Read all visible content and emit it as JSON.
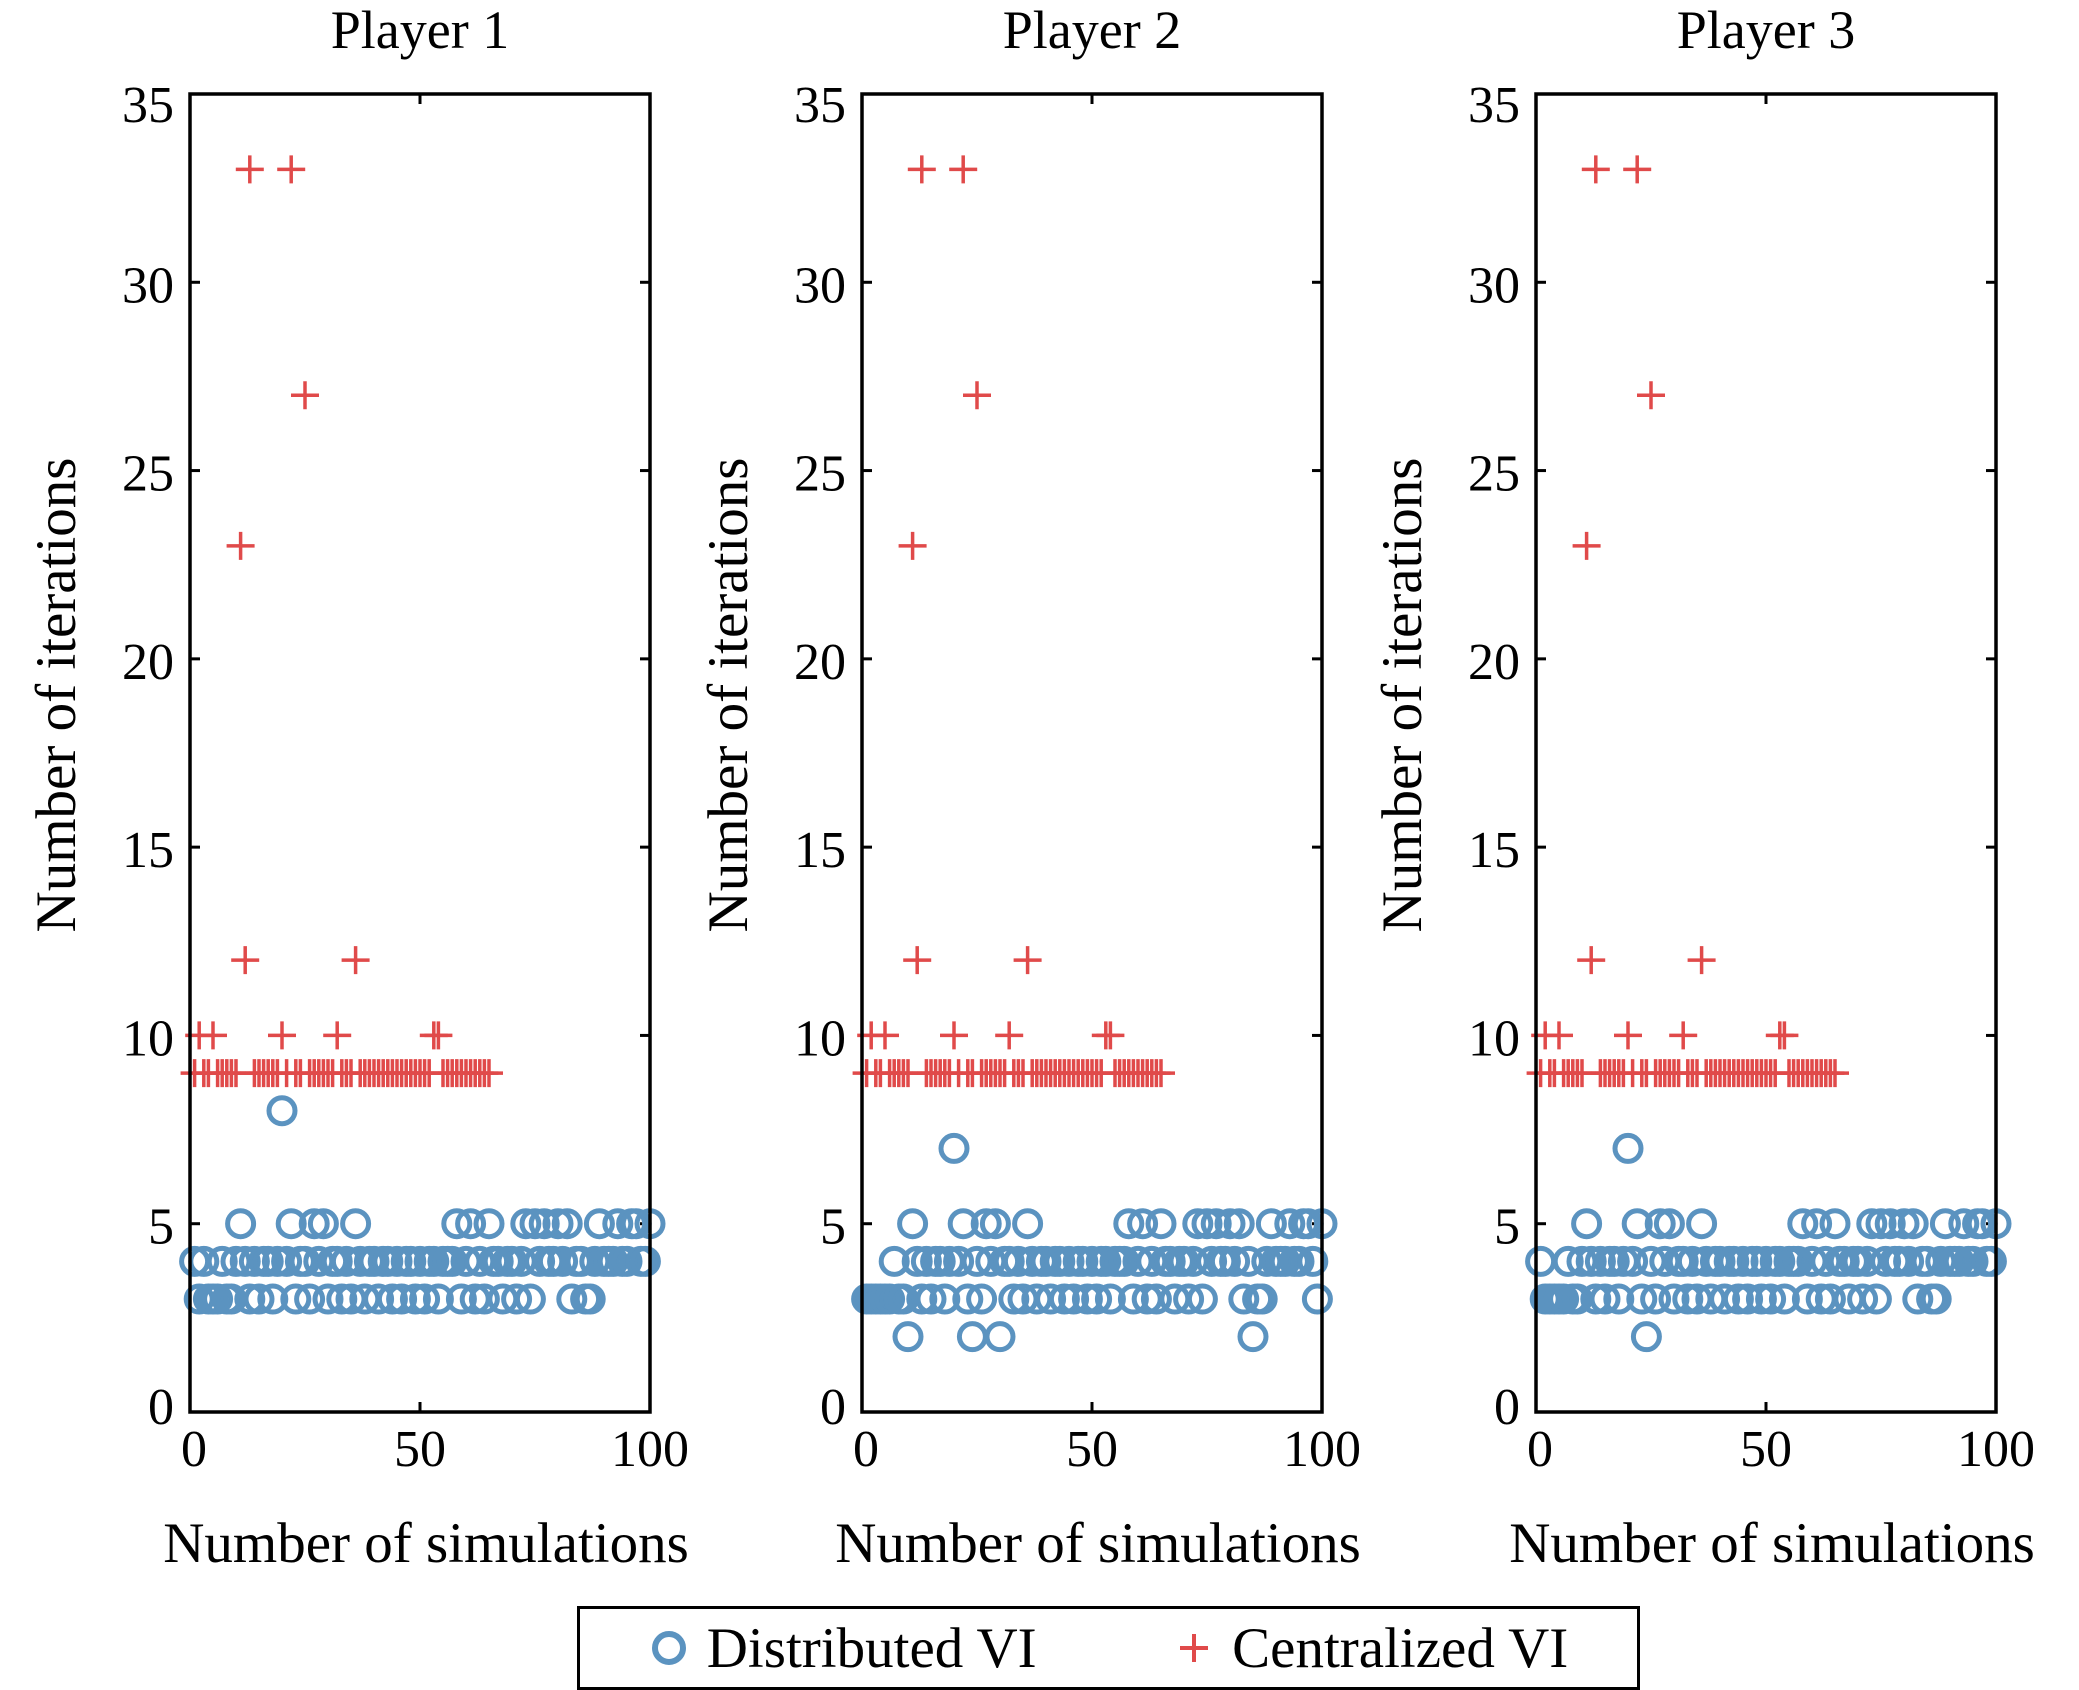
{
  "chart_data": [
    {
      "type": "scatter",
      "title": "Player 1",
      "xlabel": "Number of simulations",
      "ylabel": "Number of iterations",
      "xlim": [
        0,
        100
      ],
      "ylim": [
        0,
        35
      ],
      "xticks": [
        0,
        50,
        100
      ],
      "yticks": [
        0,
        5,
        10,
        15,
        20,
        25,
        30,
        35
      ],
      "grid": false,
      "series": [
        {
          "name": "Distributed VI",
          "marker": "circle",
          "color": "#5b93c0",
          "x": [
            1,
            2,
            3,
            4,
            5,
            6,
            7,
            8,
            9,
            10,
            11,
            12,
            13,
            14,
            15,
            16,
            17,
            18,
            19,
            20,
            21,
            22,
            23,
            24,
            25,
            26,
            27,
            28,
            29,
            30,
            31,
            32,
            33,
            34,
            35,
            36,
            37,
            38,
            39,
            40,
            41,
            42,
            43,
            44,
            45,
            46,
            47,
            48,
            49,
            50,
            51,
            52,
            53,
            54,
            55,
            56,
            57,
            58,
            59,
            60,
            61,
            62,
            63,
            64,
            65,
            66,
            67,
            68,
            69,
            70,
            71,
            72,
            73,
            74,
            75,
            76,
            77,
            78,
            79,
            80,
            81,
            82,
            83,
            84,
            85,
            86,
            87,
            88,
            89,
            90,
            91,
            92,
            93,
            94,
            95,
            96,
            97,
            98,
            99,
            100
          ],
          "y": [
            4,
            3,
            4,
            3,
            3,
            3,
            4,
            3,
            3,
            4,
            5,
            4,
            3,
            4,
            3,
            4,
            4,
            3,
            4,
            8,
            4,
            5,
            3,
            4,
            4,
            3,
            5,
            4,
            5,
            3,
            4,
            4,
            3,
            4,
            3,
            5,
            4,
            3,
            4,
            4,
            3,
            4,
            4,
            3,
            4,
            3,
            4,
            4,
            3,
            4,
            3,
            4,
            4,
            3,
            4,
            4,
            4,
            5,
            3,
            4,
            5,
            3,
            4,
            3,
            5,
            4,
            4,
            3,
            4,
            4,
            3,
            4,
            5,
            3,
            5,
            4,
            5,
            4,
            4,
            5,
            4,
            5,
            3,
            4,
            4,
            3,
            3,
            4,
            5,
            4,
            4,
            4,
            5,
            4,
            4,
            5,
            5,
            4,
            4,
            5
          ]
        },
        {
          "name": "Centralized VI",
          "marker": "plus",
          "color": "#e04a4a",
          "x": [
            1,
            2,
            3,
            4,
            5,
            6,
            7,
            8,
            9,
            10,
            11,
            12,
            13,
            14,
            15,
            16,
            17,
            18,
            19,
            20,
            21,
            22,
            23,
            24,
            25,
            26,
            27,
            28,
            29,
            30,
            31,
            32,
            33,
            34,
            35,
            36,
            37,
            38,
            39,
            40,
            41,
            42,
            43,
            44,
            45,
            46,
            47,
            48,
            49,
            50,
            51,
            52,
            53,
            54,
            55,
            56,
            57,
            58,
            59,
            60,
            61,
            62,
            63,
            64,
            65
          ],
          "y": [
            9,
            10,
            9,
            9,
            10,
            9,
            9,
            9,
            9,
            9,
            23,
            12,
            33,
            9,
            9,
            9,
            9,
            9,
            9,
            10,
            9,
            33,
            9,
            9,
            27,
            9,
            9,
            9,
            9,
            9,
            9,
            10,
            9,
            9,
            9,
            12,
            9,
            9,
            9,
            9,
            9,
            9,
            9,
            9,
            9,
            9,
            9,
            9,
            9,
            9,
            9,
            9,
            10,
            10,
            9,
            9,
            9,
            9,
            9,
            9,
            9,
            9,
            9,
            9,
            9
          ]
        }
      ]
    },
    {
      "type": "scatter",
      "title": "Player 2",
      "xlabel": "Number of simulations",
      "ylabel": "Number of iterations",
      "xlim": [
        0,
        100
      ],
      "ylim": [
        0,
        35
      ],
      "xticks": [
        0,
        50,
        100
      ],
      "yticks": [
        0,
        5,
        10,
        15,
        20,
        25,
        30,
        35
      ],
      "grid": false,
      "series": [
        {
          "name": "Distributed VI",
          "marker": "circle",
          "color": "#5b93c0",
          "x": [
            1,
            2,
            3,
            4,
            5,
            6,
            7,
            8,
            9,
            10,
            11,
            12,
            13,
            14,
            15,
            16,
            17,
            18,
            19,
            20,
            21,
            22,
            23,
            24,
            25,
            26,
            27,
            28,
            29,
            30,
            31,
            32,
            33,
            34,
            35,
            36,
            37,
            38,
            39,
            40,
            41,
            42,
            43,
            44,
            45,
            46,
            47,
            48,
            49,
            50,
            51,
            52,
            53,
            54,
            55,
            56,
            57,
            58,
            59,
            60,
            61,
            62,
            63,
            64,
            65,
            66,
            67,
            68,
            69,
            70,
            71,
            72,
            73,
            74,
            75,
            76,
            77,
            78,
            79,
            80,
            81,
            82,
            83,
            84,
            85,
            86,
            87,
            88,
            89,
            90,
            91,
            92,
            93,
            94,
            95,
            96,
            97,
            98,
            99,
            100
          ],
          "y": [
            3,
            3,
            3,
            3,
            3,
            3,
            4,
            3,
            3,
            2,
            5,
            4,
            3,
            4,
            3,
            4,
            4,
            3,
            4,
            7,
            4,
            5,
            3,
            2,
            4,
            3,
            5,
            4,
            5,
            2,
            4,
            4,
            3,
            4,
            3,
            5,
            4,
            3,
            4,
            4,
            3,
            4,
            4,
            3,
            4,
            3,
            4,
            4,
            3,
            4,
            3,
            4,
            4,
            3,
            4,
            4,
            4,
            5,
            3,
            4,
            5,
            3,
            4,
            3,
            5,
            4,
            4,
            3,
            4,
            4,
            3,
            4,
            5,
            3,
            5,
            4,
            5,
            4,
            4,
            5,
            4,
            5,
            3,
            4,
            2,
            3,
            3,
            4,
            5,
            4,
            4,
            4,
            5,
            4,
            4,
            5,
            5,
            4,
            3,
            5
          ]
        },
        {
          "name": "Centralized VI",
          "marker": "plus",
          "color": "#e04a4a",
          "x": [
            1,
            2,
            3,
            4,
            5,
            6,
            7,
            8,
            9,
            10,
            11,
            12,
            13,
            14,
            15,
            16,
            17,
            18,
            19,
            20,
            21,
            22,
            23,
            24,
            25,
            26,
            27,
            28,
            29,
            30,
            31,
            32,
            33,
            34,
            35,
            36,
            37,
            38,
            39,
            40,
            41,
            42,
            43,
            44,
            45,
            46,
            47,
            48,
            49,
            50,
            51,
            52,
            53,
            54,
            55,
            56,
            57,
            58,
            59,
            60,
            61,
            62,
            63,
            64,
            65
          ],
          "y": [
            9,
            10,
            9,
            9,
            10,
            9,
            9,
            9,
            9,
            9,
            23,
            12,
            33,
            9,
            9,
            9,
            9,
            9,
            9,
            10,
            9,
            33,
            9,
            9,
            27,
            9,
            9,
            9,
            9,
            9,
            9,
            10,
            9,
            9,
            9,
            12,
            9,
            9,
            9,
            9,
            9,
            9,
            9,
            9,
            9,
            9,
            9,
            9,
            9,
            9,
            9,
            9,
            10,
            10,
            9,
            9,
            9,
            9,
            9,
            9,
            9,
            9,
            9,
            9,
            9
          ]
        }
      ]
    },
    {
      "type": "scatter",
      "title": "Player 3",
      "xlabel": "Number of simulations",
      "ylabel": "Number of iterations",
      "xlim": [
        0,
        100
      ],
      "ylim": [
        0,
        35
      ],
      "xticks": [
        0,
        50,
        100
      ],
      "yticks": [
        0,
        5,
        10,
        15,
        20,
        25,
        30,
        35
      ],
      "grid": false,
      "series": [
        {
          "name": "Distributed VI",
          "marker": "circle",
          "color": "#5b93c0",
          "x": [
            1,
            2,
            3,
            4,
            5,
            6,
            7,
            8,
            9,
            10,
            11,
            12,
            13,
            14,
            15,
            16,
            17,
            18,
            19,
            20,
            21,
            22,
            23,
            24,
            25,
            26,
            27,
            28,
            29,
            30,
            31,
            32,
            33,
            34,
            35,
            36,
            37,
            38,
            39,
            40,
            41,
            42,
            43,
            44,
            45,
            46,
            47,
            48,
            49,
            50,
            51,
            52,
            53,
            54,
            55,
            56,
            57,
            58,
            59,
            60,
            61,
            62,
            63,
            64,
            65,
            66,
            67,
            68,
            69,
            70,
            71,
            72,
            73,
            74,
            75,
            76,
            77,
            78,
            79,
            80,
            81,
            82,
            83,
            84,
            85,
            86,
            87,
            88,
            89,
            90,
            91,
            92,
            93,
            94,
            95,
            96,
            97,
            98,
            99,
            100
          ],
          "y": [
            4,
            3,
            3,
            3,
            3,
            3,
            4,
            3,
            3,
            4,
            5,
            4,
            3,
            4,
            3,
            4,
            4,
            3,
            4,
            7,
            4,
            5,
            3,
            2,
            4,
            3,
            5,
            4,
            5,
            3,
            4,
            4,
            3,
            4,
            3,
            5,
            4,
            3,
            4,
            4,
            3,
            4,
            4,
            3,
            4,
            3,
            4,
            4,
            3,
            4,
            3,
            4,
            4,
            3,
            4,
            4,
            4,
            5,
            3,
            4,
            5,
            3,
            4,
            3,
            5,
            4,
            4,
            3,
            4,
            4,
            3,
            4,
            5,
            3,
            5,
            4,
            5,
            4,
            4,
            5,
            4,
            5,
            3,
            4,
            4,
            3,
            3,
            4,
            5,
            4,
            4,
            4,
            5,
            4,
            4,
            5,
            5,
            4,
            4,
            5
          ]
        },
        {
          "name": "Centralized VI",
          "marker": "plus",
          "color": "#e04a4a",
          "x": [
            1,
            2,
            3,
            4,
            5,
            6,
            7,
            8,
            9,
            10,
            11,
            12,
            13,
            14,
            15,
            16,
            17,
            18,
            19,
            20,
            21,
            22,
            23,
            24,
            25,
            26,
            27,
            28,
            29,
            30,
            31,
            32,
            33,
            34,
            35,
            36,
            37,
            38,
            39,
            40,
            41,
            42,
            43,
            44,
            45,
            46,
            47,
            48,
            49,
            50,
            51,
            52,
            53,
            54,
            55,
            56,
            57,
            58,
            59,
            60,
            61,
            62,
            63,
            64,
            65
          ],
          "y": [
            9,
            10,
            9,
            9,
            10,
            9,
            9,
            9,
            9,
            9,
            23,
            12,
            33,
            9,
            9,
            9,
            9,
            9,
            9,
            10,
            9,
            33,
            9,
            9,
            27,
            9,
            9,
            9,
            9,
            9,
            9,
            10,
            9,
            9,
            9,
            12,
            9,
            9,
            9,
            9,
            9,
            9,
            9,
            9,
            9,
            9,
            9,
            9,
            9,
            9,
            9,
            9,
            10,
            10,
            9,
            9,
            9,
            9,
            9,
            9,
            9,
            9,
            9,
            9,
            9
          ]
        }
      ]
    }
  ],
  "legend": {
    "position": "bottom-center",
    "items": [
      {
        "label": "Distributed VI",
        "marker": "circle",
        "color": "#5b93c0"
      },
      {
        "label": "Centralized VI",
        "marker": "plus",
        "color": "#e04a4a"
      }
    ]
  }
}
